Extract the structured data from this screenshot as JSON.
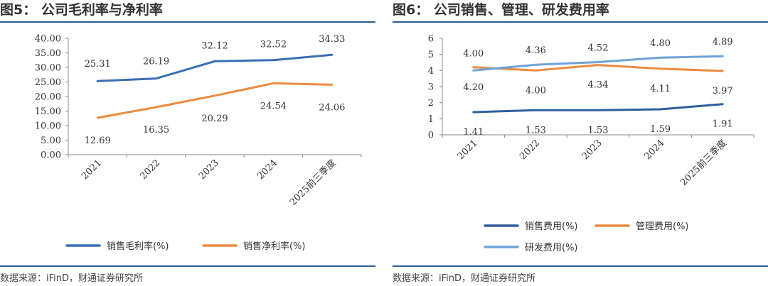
{
  "figures": [
    {
      "title": "图5：  公司毛利率与净利率",
      "source": "数据来源：iFinD，财通证券研究所",
      "chart_data": {
        "type": "line",
        "title": "公司毛利率与净利率",
        "categories": [
          "2021",
          "2022",
          "2023",
          "2024",
          "2025前三季度"
        ],
        "ylim": [
          0,
          40
        ],
        "yticks": [
          "0.00",
          "5.00",
          "10.00",
          "15.00",
          "20.00",
          "25.00",
          "30.00",
          "35.00",
          "40.00"
        ],
        "legend_position": "bottom",
        "series": [
          {
            "name": "销售毛利率(%)",
            "color": "#3a6eb5",
            "values": [
              25.31,
              26.19,
              32.12,
              32.52,
              34.33
            ],
            "labels": [
              "25.31",
              "26.19",
              "32.12",
              "32.52",
              "34.33"
            ],
            "label_side": [
              "above",
              "above",
              "above",
              "above",
              "above"
            ]
          },
          {
            "name": "销售净利率(%)",
            "color": "#ed8b3f",
            "values": [
              12.69,
              16.35,
              20.29,
              24.54,
              24.06
            ],
            "labels": [
              "12.69",
              "16.35",
              "20.29",
              "24.54",
              "24.06"
            ],
            "label_side": [
              "below",
              "below",
              "below",
              "below",
              "below"
            ]
          }
        ]
      }
    },
    {
      "title": "图6：  公司销售、管理、研发费用率",
      "source": "数据来源：iFinD，财通证券研究所",
      "chart_data": {
        "type": "line",
        "title": "公司销售、管理、研发费用率",
        "categories": [
          "2021",
          "2022",
          "2023",
          "2024",
          "2025前三季度"
        ],
        "ylim": [
          0,
          6
        ],
        "yticks": [
          "0",
          "1",
          "2",
          "3",
          "4",
          "5",
          "6"
        ],
        "legend_position": "bottom",
        "series": [
          {
            "name": "销售费用(%)",
            "color": "#2e5f9e",
            "values": [
              1.41,
              1.53,
              1.53,
              1.59,
              1.91
            ],
            "labels": [
              "1.41",
              "1.53",
              "1.53",
              "1.59",
              "1.91"
            ],
            "label_side": [
              "below",
              "below",
              "below",
              "below",
              "below"
            ]
          },
          {
            "name": "管理费用(%)",
            "color": "#ed8b3f",
            "values": [
              4.2,
              4.0,
              4.34,
              4.11,
              3.97
            ],
            "labels": [
              "4.20",
              "4.00",
              "4.34",
              "4.11",
              "3.97"
            ],
            "label_side": [
              "below",
              "below",
              "below",
              "below",
              "below"
            ]
          },
          {
            "name": "研发费用(%)",
            "color": "#6fa3d8",
            "values": [
              4.0,
              4.36,
              4.52,
              4.8,
              4.89
            ],
            "labels": [
              "4.00",
              "4.36",
              "4.52",
              "4.80",
              "4.89"
            ],
            "label_side": [
              "above",
              "above",
              "above",
              "above",
              "above"
            ]
          }
        ]
      }
    }
  ]
}
